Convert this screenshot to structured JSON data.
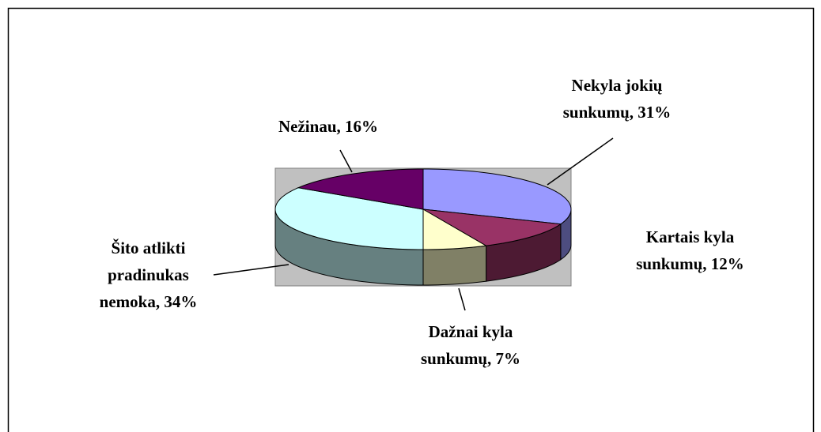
{
  "chart_data": {
    "type": "pie3d",
    "categories": [
      "Nekyla jokių sunkumų,",
      "Kartais kyla sunkumų,",
      "Dažnai kyla sunkumų,",
      "Šito atlikti pradinukas nemoka,",
      "Nežinau,"
    ],
    "values": [
      31,
      12,
      7,
      34,
      16
    ],
    "value_labels": [
      "31%",
      "12%",
      "7%",
      "34%",
      "16%"
    ],
    "colors": [
      "#9999ff",
      "#993366",
      "#ffffcc",
      "#ccffff",
      "#660066"
    ]
  }
}
